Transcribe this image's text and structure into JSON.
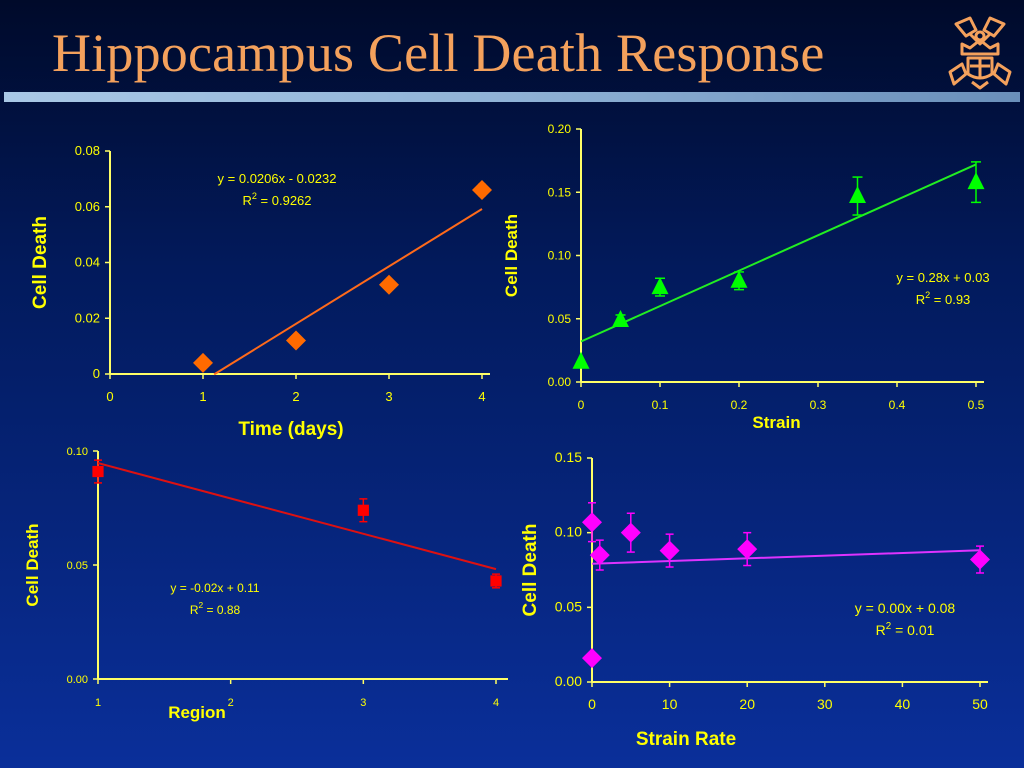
{
  "slide": {
    "title": "Hippocampus Cell Death Response",
    "logo_icon": "crest-crown-icon"
  },
  "chart_data": [
    {
      "type": "scatter",
      "id": "time",
      "xlabel": "Time (days)",
      "ylabel": "Cell Death",
      "xlim": [
        0,
        4
      ],
      "ylim": [
        0,
        0.08
      ],
      "xticks": [
        "0",
        "1",
        "2",
        "3",
        "4"
      ],
      "yticks": [
        "0",
        "0.02",
        "0.04",
        "0.06",
        "0.08"
      ],
      "marker": "diamond",
      "color": "#ff6a00",
      "line_color": "#ff6a1a",
      "points": [
        {
          "x": 1,
          "y": 0.004
        },
        {
          "x": 2,
          "y": 0.012
        },
        {
          "x": 3,
          "y": 0.032
        },
        {
          "x": 4,
          "y": 0.066,
          "err": 0.002
        }
      ],
      "fit": {
        "slope": 0.0206,
        "intercept": -0.0232,
        "x_range": [
          1.12,
          4
        ]
      },
      "equation": "y = 0.0206x - 0.0232",
      "r2_prefix": "R",
      "r2_value": " = 0.9262"
    },
    {
      "type": "scatter",
      "id": "strain",
      "xlabel": "Strain",
      "ylabel": "Cell Death",
      "xlim": [
        0,
        0.5
      ],
      "ylim": [
        0,
        0.2
      ],
      "xticks": [
        "0",
        "0.1",
        "0.2",
        "0.3",
        "0.4",
        "0.5"
      ],
      "yticks": [
        "0.00",
        "0.05",
        "0.10",
        "0.15",
        "0.20"
      ],
      "marker": "triangle",
      "color": "#00ff00",
      "line_color": "#22ee22",
      "points": [
        {
          "x": 0,
          "y": 0.016,
          "err": 0
        },
        {
          "x": 0.05,
          "y": 0.049,
          "err": 0.004
        },
        {
          "x": 0.1,
          "y": 0.075,
          "err": 0.007
        },
        {
          "x": 0.2,
          "y": 0.08,
          "err": 0.007
        },
        {
          "x": 0.35,
          "y": 0.147,
          "err": 0.015
        },
        {
          "x": 0.5,
          "y": 0.158,
          "err": 0.016
        }
      ],
      "fit": {
        "slope": 0.28,
        "intercept": 0.032,
        "x_range": [
          0,
          0.5
        ]
      },
      "equation": "y = 0.28x + 0.03",
      "r2_prefix": "R",
      "r2_value": " = 0.93"
    },
    {
      "type": "scatter",
      "id": "region",
      "xlabel": "Region",
      "ylabel": "Cell Death",
      "xlim": [
        1,
        4
      ],
      "ylim": [
        0,
        0.1
      ],
      "xticks": [
        "1",
        "2",
        "3",
        "4"
      ],
      "yticks": [
        "0.00",
        "0.05",
        "0.10"
      ],
      "marker": "square",
      "color": "#ff0000",
      "line_color": "#dd1111",
      "points": [
        {
          "x": 1,
          "y": 0.091,
          "err": 0.005
        },
        {
          "x": 3,
          "y": 0.074,
          "err": 0.005
        },
        {
          "x": 4,
          "y": 0.043,
          "err": 0.003
        }
      ],
      "fit": {
        "slope": -0.0155,
        "intercept": 0.1102,
        "x_range": [
          1,
          4
        ]
      },
      "equation": "y = -0.02x + 0.11",
      "r2_prefix": "R",
      "r2_value": " = 0.88"
    },
    {
      "type": "scatter",
      "id": "strainrate",
      "xlabel": "Strain Rate",
      "ylabel": "Cell Death",
      "xlim": [
        0,
        50
      ],
      "ylim": [
        0,
        0.15
      ],
      "xticks": [
        "0",
        "10",
        "20",
        "30",
        "40",
        "50"
      ],
      "yticks": [
        "0.00",
        "0.05",
        "0.10",
        "0.15"
      ],
      "marker": "diamond",
      "color": "#ff00ff",
      "line_color": "#dd33ff",
      "points": [
        {
          "x": 0,
          "y": 0.016,
          "err": 0
        },
        {
          "x": 0,
          "y": 0.107,
          "err": 0.013
        },
        {
          "x": 1,
          "y": 0.085,
          "err": 0.01
        },
        {
          "x": 5,
          "y": 0.1,
          "err": 0.013
        },
        {
          "x": 10,
          "y": 0.088,
          "err": 0.011
        },
        {
          "x": 20,
          "y": 0.089,
          "err": 0.011
        },
        {
          "x": 50,
          "y": 0.082,
          "err": 0.009
        }
      ],
      "fit": {
        "slope": 0.00018,
        "intercept": 0.0792,
        "x_range": [
          0,
          50
        ]
      },
      "equation": "y = 0.00x + 0.08",
      "r2_prefix": "R",
      "r2_value": " = 0.01"
    }
  ]
}
